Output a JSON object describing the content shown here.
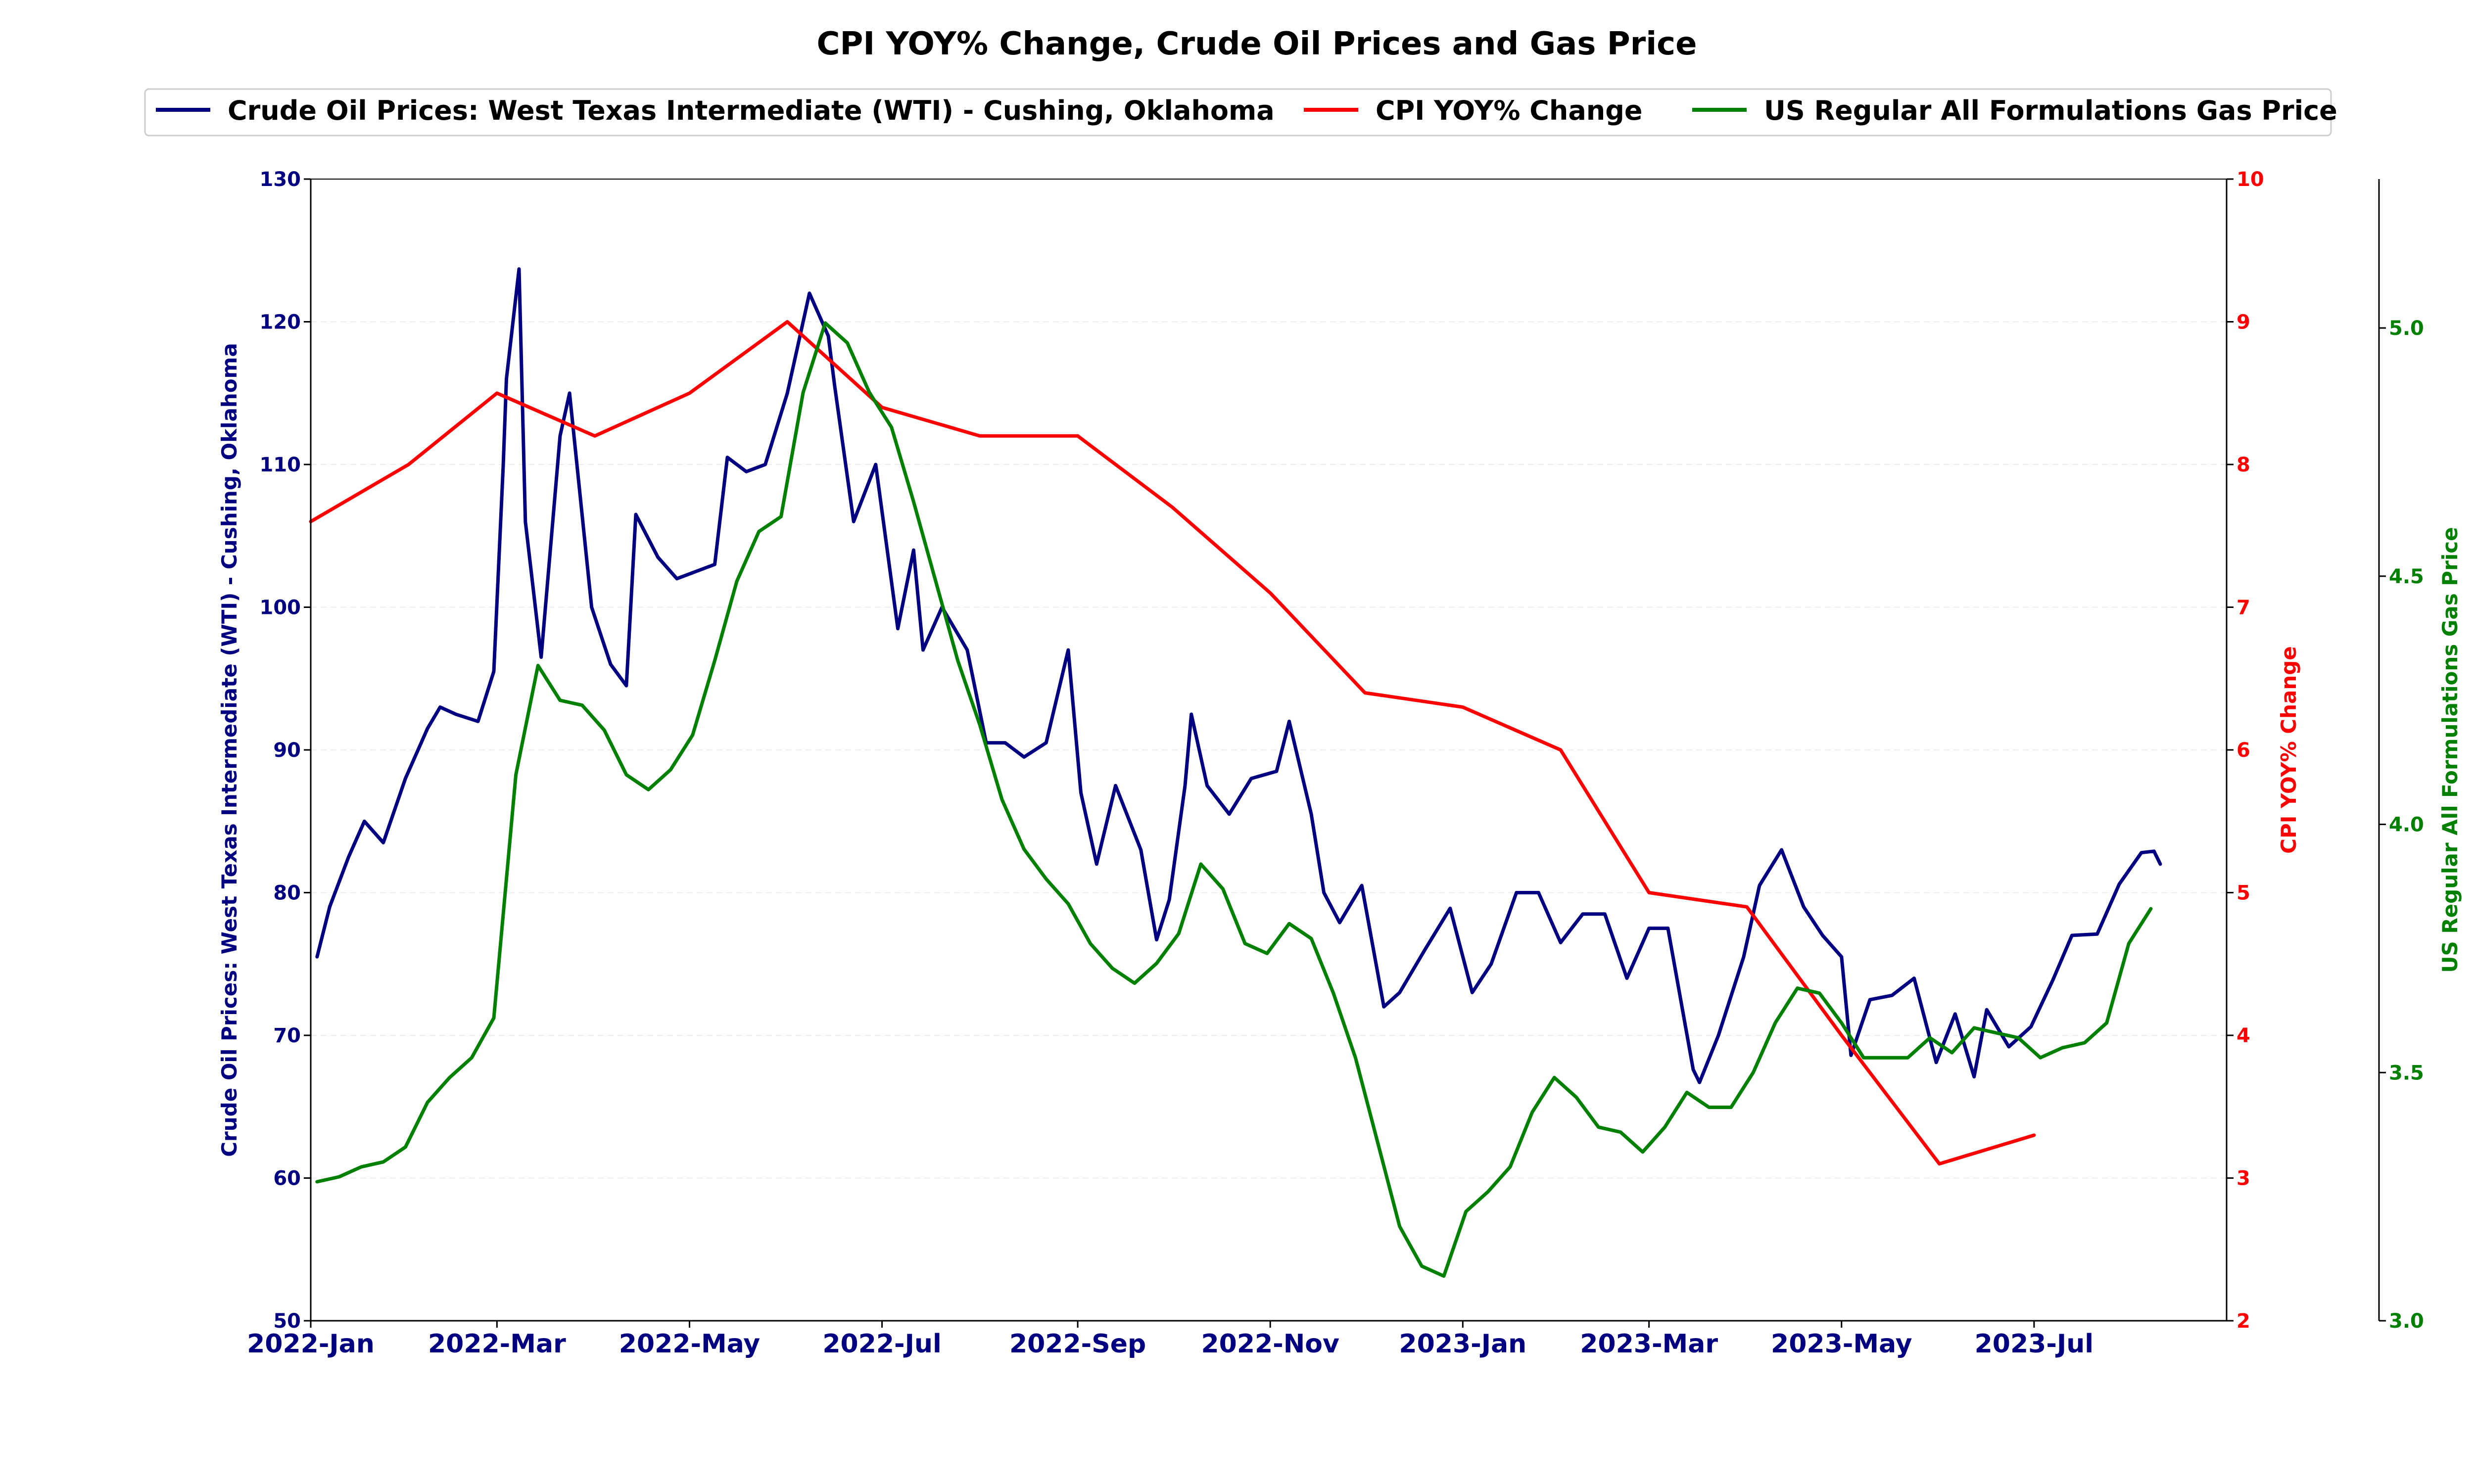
{
  "chart_data": {
    "type": "line",
    "title": "CPI YOY% Change, Crude Oil Prices and Gas Price",
    "xlabel": "",
    "x_ticks": [
      "2022-Jan",
      "2022-Mar",
      "2022-May",
      "2022-Jul",
      "2022-Sep",
      "2022-Nov",
      "2023-Jan",
      "2023-Mar",
      "2023-May",
      "2023-Jul"
    ],
    "x_range": [
      "2022-01-01",
      "2023-08-31"
    ],
    "legend_position": "top-center",
    "grid": "horizontal",
    "axes": {
      "left": {
        "label": "Crude Oil Prices: West Texas Intermediate (WTI) - Cushing, Oklahoma",
        "ylim": [
          50,
          130
        ],
        "ticks": [
          "50",
          "60",
          "70",
          "80",
          "90",
          "100",
          "110",
          "120",
          "130"
        ],
        "color": "#000080"
      },
      "right": {
        "label": "CPI YOY% Change",
        "ylim": [
          2,
          10
        ],
        "ticks": [
          "2",
          "3",
          "4",
          "5",
          "6",
          "7",
          "8",
          "9",
          "10"
        ],
        "color": "#ff0000"
      },
      "right_outer": {
        "label": "US Regular All Formulations Gas Price",
        "ylim": [
          3.0,
          5.3
        ],
        "ticks": [
          "3.0",
          "3.5",
          "4.0",
          "4.5",
          "5.0"
        ],
        "color": "#008000"
      }
    },
    "series": [
      {
        "name": "Crude Oil Prices: West Texas Intermediate (WTI) - Cushing, Oklahoma",
        "axis": "left",
        "color": "#000080",
        "points": [
          [
            "2022-01-03",
            75.5
          ],
          [
            "2022-01-07",
            79.0
          ],
          [
            "2022-01-13",
            82.5
          ],
          [
            "2022-01-18",
            85.0
          ],
          [
            "2022-01-24",
            83.5
          ],
          [
            "2022-01-31",
            88.0
          ],
          [
            "2022-02-07",
            91.5
          ],
          [
            "2022-02-11",
            93.0
          ],
          [
            "2022-02-16",
            92.5
          ],
          [
            "2022-02-23",
            92.0
          ],
          [
            "2022-02-28",
            95.5
          ],
          [
            "2022-03-03",
            110.0
          ],
          [
            "2022-03-04",
            116.0
          ],
          [
            "2022-03-08",
            123.7
          ],
          [
            "2022-03-10",
            106.0
          ],
          [
            "2022-03-15",
            96.5
          ],
          [
            "2022-03-21",
            112.0
          ],
          [
            "2022-03-24",
            115.0
          ],
          [
            "2022-03-31",
            100.0
          ],
          [
            "2022-04-06",
            96.0
          ],
          [
            "2022-04-11",
            94.5
          ],
          [
            "2022-04-14",
            106.5
          ],
          [
            "2022-04-21",
            103.5
          ],
          [
            "2022-04-27",
            102.0
          ],
          [
            "2022-05-03",
            102.5
          ],
          [
            "2022-05-09",
            103.0
          ],
          [
            "2022-05-13",
            110.5
          ],
          [
            "2022-05-19",
            109.5
          ],
          [
            "2022-05-25",
            110.0
          ],
          [
            "2022-06-01",
            115.0
          ],
          [
            "2022-06-08",
            122.0
          ],
          [
            "2022-06-14",
            119.0
          ],
          [
            "2022-06-16",
            115.5
          ],
          [
            "2022-06-22",
            106.0
          ],
          [
            "2022-06-29",
            110.0
          ],
          [
            "2022-07-06",
            98.5
          ],
          [
            "2022-07-11",
            104.0
          ],
          [
            "2022-07-14",
            97.0
          ],
          [
            "2022-07-20",
            100.0
          ],
          [
            "2022-07-28",
            97.0
          ],
          [
            "2022-08-03",
            90.5
          ],
          [
            "2022-08-09",
            90.5
          ],
          [
            "2022-08-15",
            89.5
          ],
          [
            "2022-08-22",
            90.5
          ],
          [
            "2022-08-29",
            97.0
          ],
          [
            "2022-09-02",
            87.0
          ],
          [
            "2022-09-07",
            82.0
          ],
          [
            "2022-09-13",
            87.5
          ],
          [
            "2022-09-21",
            83.0
          ],
          [
            "2022-09-26",
            76.7
          ],
          [
            "2022-09-30",
            79.5
          ],
          [
            "2022-10-05",
            87.5
          ],
          [
            "2022-10-07",
            92.5
          ],
          [
            "2022-10-12",
            87.5
          ],
          [
            "2022-10-19",
            85.5
          ],
          [
            "2022-10-26",
            88.0
          ],
          [
            "2022-11-03",
            88.5
          ],
          [
            "2022-11-07",
            92.0
          ],
          [
            "2022-11-14",
            85.5
          ],
          [
            "2022-11-18",
            80.0
          ],
          [
            "2022-11-23",
            77.9
          ],
          [
            "2022-11-30",
            80.5
          ],
          [
            "2022-12-07",
            72.0
          ],
          [
            "2022-12-12",
            73.0
          ],
          [
            "2022-12-20",
            76.0
          ],
          [
            "2022-12-28",
            78.9
          ],
          [
            "2023-01-04",
            73.0
          ],
          [
            "2023-01-10",
            75.0
          ],
          [
            "2023-01-18",
            80.0
          ],
          [
            "2023-01-25",
            80.0
          ],
          [
            "2023-02-01",
            76.5
          ],
          [
            "2023-02-08",
            78.5
          ],
          [
            "2023-02-15",
            78.5
          ],
          [
            "2023-02-22",
            74.0
          ],
          [
            "2023-03-01",
            77.5
          ],
          [
            "2023-03-07",
            77.5
          ],
          [
            "2023-03-15",
            67.6
          ],
          [
            "2023-03-17",
            66.7
          ],
          [
            "2023-03-23",
            70.0
          ],
          [
            "2023-03-31",
            75.5
          ],
          [
            "2023-04-05",
            80.5
          ],
          [
            "2023-04-12",
            83.0
          ],
          [
            "2023-04-19",
            79.0
          ],
          [
            "2023-04-25",
            77.0
          ],
          [
            "2023-05-01",
            75.5
          ],
          [
            "2023-05-04",
            68.6
          ],
          [
            "2023-05-10",
            72.5
          ],
          [
            "2023-05-17",
            72.8
          ],
          [
            "2023-05-24",
            74.0
          ],
          [
            "2023-05-31",
            68.1
          ],
          [
            "2023-06-06",
            71.5
          ],
          [
            "2023-06-12",
            67.1
          ],
          [
            "2023-06-16",
            71.8
          ],
          [
            "2023-06-23",
            69.2
          ],
          [
            "2023-06-30",
            70.6
          ],
          [
            "2023-07-07",
            73.9
          ],
          [
            "2023-07-13",
            77.0
          ],
          [
            "2023-07-21",
            77.1
          ],
          [
            "2023-07-28",
            80.6
          ],
          [
            "2023-08-04",
            82.8
          ],
          [
            "2023-08-08",
            82.9
          ],
          [
            "2023-08-10",
            82.0
          ]
        ]
      },
      {
        "name": "CPI YOY% Change",
        "axis": "right",
        "color": "#ff0000",
        "points": [
          [
            "2022-01-01",
            7.6
          ],
          [
            "2022-02-01",
            8.0
          ],
          [
            "2022-03-01",
            8.5
          ],
          [
            "2022-04-01",
            8.2
          ],
          [
            "2022-05-01",
            8.5
          ],
          [
            "2022-06-01",
            9.0
          ],
          [
            "2022-07-01",
            8.4
          ],
          [
            "2022-08-01",
            8.2
          ],
          [
            "2022-09-01",
            8.2
          ],
          [
            "2022-10-01",
            7.7
          ],
          [
            "2022-11-01",
            7.1
          ],
          [
            "2022-12-01",
            6.4
          ],
          [
            "2023-01-01",
            6.3
          ],
          [
            "2023-02-01",
            6.0
          ],
          [
            "2023-03-01",
            5.0
          ],
          [
            "2023-04-01",
            4.9
          ],
          [
            "2023-05-01",
            4.0
          ],
          [
            "2023-06-01",
            3.1
          ],
          [
            "2023-07-01",
            3.3
          ]
        ]
      },
      {
        "name": "US Regular All Formulations Gas Price",
        "axis": "right_outer",
        "color": "#008000",
        "points": [
          [
            "2022-01-03",
            3.28
          ],
          [
            "2022-01-10",
            3.29
          ],
          [
            "2022-01-17",
            3.31
          ],
          [
            "2022-01-24",
            3.32
          ],
          [
            "2022-01-31",
            3.35
          ],
          [
            "2022-02-07",
            3.44
          ],
          [
            "2022-02-14",
            3.49
          ],
          [
            "2022-02-21",
            3.53
          ],
          [
            "2022-02-28",
            3.61
          ],
          [
            "2022-03-07",
            4.1
          ],
          [
            "2022-03-14",
            4.32
          ],
          [
            "2022-03-21",
            4.25
          ],
          [
            "2022-03-28",
            4.24
          ],
          [
            "2022-04-04",
            4.19
          ],
          [
            "2022-04-11",
            4.1
          ],
          [
            "2022-04-18",
            4.07
          ],
          [
            "2022-04-25",
            4.11
          ],
          [
            "2022-05-02",
            4.18
          ],
          [
            "2022-05-09",
            4.33
          ],
          [
            "2022-05-16",
            4.49
          ],
          [
            "2022-05-23",
            4.59
          ],
          [
            "2022-05-30",
            4.62
          ],
          [
            "2022-06-06",
            4.87
          ],
          [
            "2022-06-13",
            5.01
          ],
          [
            "2022-06-20",
            4.97
          ],
          [
            "2022-06-27",
            4.87
          ],
          [
            "2022-07-04",
            4.8
          ],
          [
            "2022-07-11",
            4.65
          ],
          [
            "2022-07-18",
            4.49
          ],
          [
            "2022-07-25",
            4.33
          ],
          [
            "2022-08-01",
            4.2
          ],
          [
            "2022-08-08",
            4.05
          ],
          [
            "2022-08-15",
            3.95
          ],
          [
            "2022-08-22",
            3.89
          ],
          [
            "2022-08-29",
            3.84
          ],
          [
            "2022-09-05",
            3.76
          ],
          [
            "2022-09-12",
            3.71
          ],
          [
            "2022-09-19",
            3.68
          ],
          [
            "2022-09-26",
            3.72
          ],
          [
            "2022-10-03",
            3.78
          ],
          [
            "2022-10-10",
            3.92
          ],
          [
            "2022-10-17",
            3.87
          ],
          [
            "2022-10-24",
            3.76
          ],
          [
            "2022-10-31",
            3.74
          ],
          [
            "2022-11-07",
            3.8
          ],
          [
            "2022-11-14",
            3.77
          ],
          [
            "2022-11-21",
            3.66
          ],
          [
            "2022-11-28",
            3.53
          ],
          [
            "2022-12-05",
            3.36
          ],
          [
            "2022-12-12",
            3.19
          ],
          [
            "2022-12-19",
            3.11
          ],
          [
            "2022-12-26",
            3.09
          ],
          [
            "2023-01-02",
            3.22
          ],
          [
            "2023-01-09",
            3.26
          ],
          [
            "2023-01-16",
            3.31
          ],
          [
            "2023-01-23",
            3.42
          ],
          [
            "2023-01-30",
            3.49
          ],
          [
            "2023-02-06",
            3.45
          ],
          [
            "2023-02-13",
            3.39
          ],
          [
            "2023-02-20",
            3.38
          ],
          [
            "2023-02-27",
            3.34
          ],
          [
            "2023-03-06",
            3.39
          ],
          [
            "2023-03-13",
            3.46
          ],
          [
            "2023-03-20",
            3.43
          ],
          [
            "2023-03-27",
            3.43
          ],
          [
            "2023-04-03",
            3.5
          ],
          [
            "2023-04-10",
            3.6
          ],
          [
            "2023-04-17",
            3.67
          ],
          [
            "2023-04-24",
            3.66
          ],
          [
            "2023-05-01",
            3.6
          ],
          [
            "2023-05-08",
            3.53
          ],
          [
            "2023-05-15",
            3.53
          ],
          [
            "2023-05-22",
            3.53
          ],
          [
            "2023-05-29",
            3.57
          ],
          [
            "2023-06-05",
            3.54
          ],
          [
            "2023-06-12",
            3.59
          ],
          [
            "2023-06-19",
            3.58
          ],
          [
            "2023-06-26",
            3.57
          ],
          [
            "2023-07-03",
            3.53
          ],
          [
            "2023-07-10",
            3.55
          ],
          [
            "2023-07-17",
            3.56
          ],
          [
            "2023-07-24",
            3.6
          ],
          [
            "2023-07-31",
            3.76
          ],
          [
            "2023-08-07",
            3.83
          ]
        ]
      }
    ]
  }
}
